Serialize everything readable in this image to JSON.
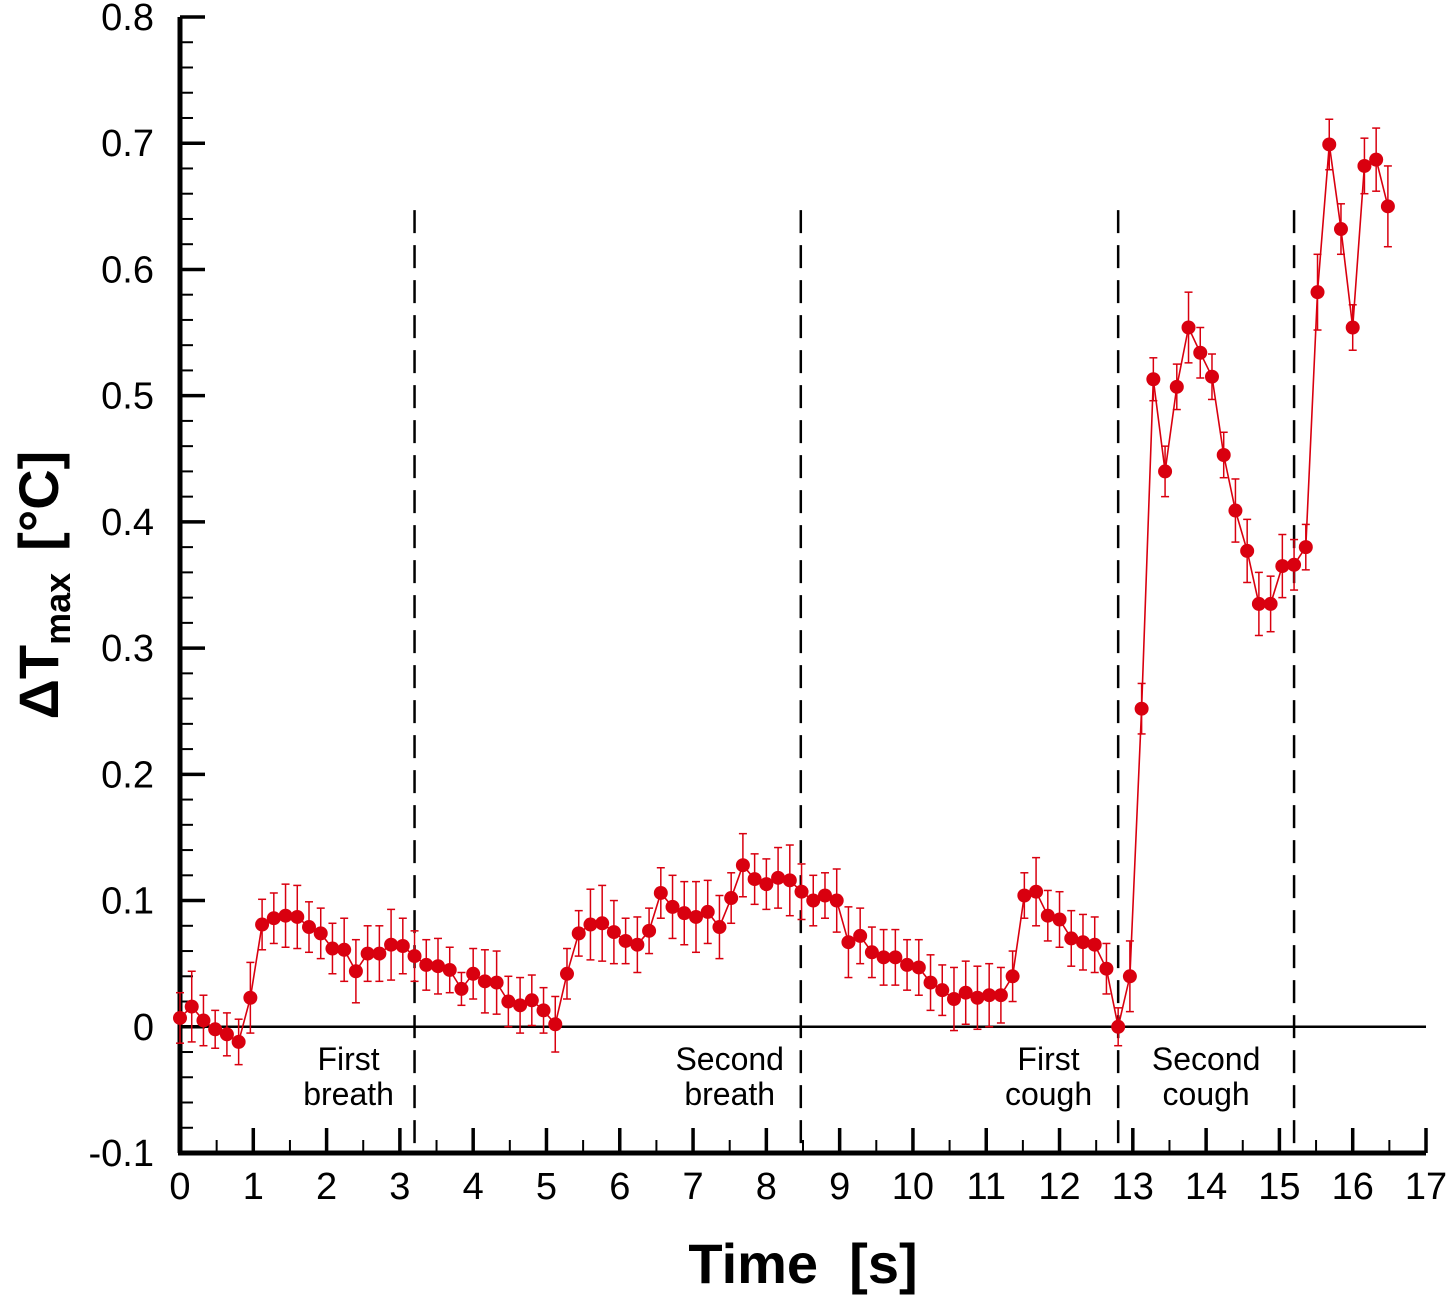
{
  "chart_data": {
    "type": "scatter",
    "title": "",
    "xlabel": "Time  [s]",
    "ylabel": {
      "prefix": "ΔT",
      "subscript": "max",
      "unit": "[°C]"
    },
    "xlim": [
      0,
      17
    ],
    "ylim": [
      -0.1,
      0.8
    ],
    "xticks": [
      0,
      1,
      2,
      3,
      4,
      5,
      6,
      7,
      8,
      9,
      10,
      11,
      12,
      13,
      14,
      15,
      16,
      17
    ],
    "xtick_labels": [
      "0",
      "1",
      "2",
      "3",
      "4",
      "5",
      "6",
      "7",
      "8",
      "9",
      "10",
      "11",
      "12",
      "13",
      "14",
      "15",
      "16",
      "17"
    ],
    "yticks": [
      -0.1,
      0,
      0.1,
      0.2,
      0.3,
      0.4,
      0.5,
      0.6,
      0.7,
      0.8
    ],
    "ytick_labels": [
      "-0.1",
      "0",
      "0.1",
      "0.2",
      "0.3",
      "0.4",
      "0.5",
      "0.6",
      "0.7",
      "0.8"
    ],
    "grid": false,
    "zero_line": true,
    "colors": {
      "series": "#d9000f",
      "axis": "#000000"
    },
    "region_boundaries": [
      3.2,
      8.47,
      12.8,
      15.2
    ],
    "region_labels": [
      {
        "x": 2.3,
        "lines": [
          "First",
          "breath"
        ]
      },
      {
        "x": 7.5,
        "lines": [
          "Second",
          "breath"
        ]
      },
      {
        "x": 11.85,
        "lines": [
          "First",
          "cough"
        ]
      },
      {
        "x": 14.0,
        "lines": [
          "Second",
          "cough"
        ]
      }
    ],
    "series": [
      {
        "name": "ΔTmax",
        "x": [
          0.0,
          0.16,
          0.32,
          0.48,
          0.64,
          0.8,
          0.96,
          1.12,
          1.28,
          1.44,
          1.6,
          1.76,
          1.92,
          2.08,
          2.24,
          2.4,
          2.56,
          2.72,
          2.88,
          3.04,
          3.2,
          3.36,
          3.52,
          3.68,
          3.84,
          4.0,
          4.16,
          4.32,
          4.48,
          4.64,
          4.8,
          4.96,
          5.12,
          5.28,
          5.44,
          5.6,
          5.76,
          5.92,
          6.08,
          6.24,
          6.4,
          6.56,
          6.72,
          6.88,
          7.04,
          7.2,
          7.36,
          7.52,
          7.68,
          7.84,
          8.0,
          8.16,
          8.32,
          8.48,
          8.64,
          8.8,
          8.96,
          9.12,
          9.28,
          9.44,
          9.6,
          9.76,
          9.92,
          10.08,
          10.24,
          10.4,
          10.56,
          10.72,
          10.88,
          11.04,
          11.2,
          11.36,
          11.52,
          11.68,
          11.84,
          12.0,
          12.16,
          12.32,
          12.48,
          12.64,
          12.8,
          12.96,
          13.12,
          13.28,
          13.44,
          13.6,
          13.76,
          13.92,
          14.08,
          14.24,
          14.4,
          14.56,
          14.72,
          14.88,
          15.04,
          15.2,
          15.36,
          15.52,
          15.68,
          15.84,
          16.0,
          16.16,
          16.32,
          16.48
        ],
        "y": [
          0.007,
          0.016,
          0.005,
          -0.002,
          -0.006,
          -0.012,
          0.023,
          0.081,
          0.086,
          0.088,
          0.087,
          0.079,
          0.074,
          0.062,
          0.061,
          0.044,
          0.058,
          0.058,
          0.065,
          0.064,
          0.056,
          0.049,
          0.048,
          0.045,
          0.03,
          0.042,
          0.036,
          0.035,
          0.02,
          0.017,
          0.021,
          0.013,
          0.002,
          0.042,
          0.074,
          0.081,
          0.082,
          0.075,
          0.068,
          0.065,
          0.076,
          0.106,
          0.095,
          0.09,
          0.087,
          0.091,
          0.079,
          0.102,
          0.128,
          0.117,
          0.113,
          0.118,
          0.116,
          0.107,
          0.1,
          0.104,
          0.1,
          0.067,
          0.072,
          0.059,
          0.055,
          0.055,
          0.049,
          0.047,
          0.035,
          0.029,
          0.022,
          0.027,
          0.023,
          0.025,
          0.025,
          0.04,
          0.104,
          0.107,
          0.088,
          0.085,
          0.07,
          0.067,
          0.065,
          0.046,
          0.0,
          0.04,
          0.252,
          0.513,
          0.44,
          0.507,
          0.554,
          0.534,
          0.515,
          0.453,
          0.409,
          0.377,
          0.335,
          0.335,
          0.365,
          0.366,
          0.38,
          0.582,
          0.699,
          0.632,
          0.554,
          0.682,
          0.687,
          0.65
        ],
        "err": [
          0.02,
          0.028,
          0.02,
          0.015,
          0.017,
          0.018,
          0.028,
          0.02,
          0.02,
          0.025,
          0.025,
          0.02,
          0.02,
          0.02,
          0.025,
          0.025,
          0.022,
          0.022,
          0.028,
          0.022,
          0.02,
          0.02,
          0.022,
          0.018,
          0.013,
          0.02,
          0.025,
          0.025,
          0.02,
          0.022,
          0.02,
          0.018,
          0.022,
          0.02,
          0.018,
          0.028,
          0.03,
          0.025,
          0.018,
          0.022,
          0.018,
          0.02,
          0.025,
          0.025,
          0.028,
          0.025,
          0.025,
          0.02,
          0.025,
          0.02,
          0.02,
          0.024,
          0.028,
          0.022,
          0.02,
          0.018,
          0.025,
          0.028,
          0.022,
          0.02,
          0.022,
          0.022,
          0.02,
          0.022,
          0.022,
          0.02,
          0.025,
          0.025,
          0.025,
          0.025,
          0.022,
          0.02,
          0.018,
          0.027,
          0.02,
          0.022,
          0.022,
          0.022,
          0.022,
          0.02,
          0.015,
          0.028,
          0.02,
          0.017,
          0.02,
          0.018,
          0.028,
          0.02,
          0.018,
          0.018,
          0.025,
          0.025,
          0.025,
          0.022,
          0.025,
          0.02,
          0.018,
          0.03,
          0.02,
          0.02,
          0.018,
          0.022,
          0.025,
          0.032
        ]
      }
    ]
  }
}
